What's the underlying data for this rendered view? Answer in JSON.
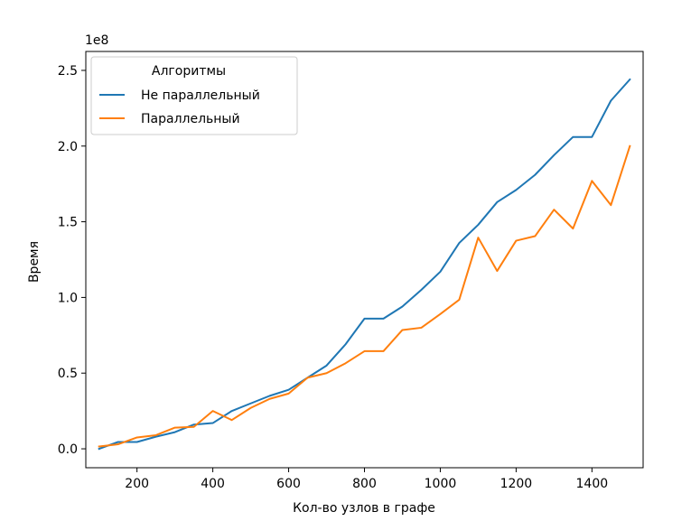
{
  "chart_data": {
    "type": "line",
    "xlabel": "Кол-во узлов в графе",
    "ylabel": "Время",
    "y_offset_label": "1e8",
    "xlim": [
      65,
      1535
    ],
    "ylim": [
      -12500000,
      262500000
    ],
    "x_ticks": [
      200,
      400,
      600,
      800,
      1000,
      1200,
      1400
    ],
    "y_ticks": [
      0,
      50000000,
      100000000,
      150000000,
      200000000,
      250000000
    ],
    "y_tick_labels": [
      "0.0",
      "0.5",
      "1.0",
      "1.5",
      "2.0",
      "2.5"
    ],
    "grid": false,
    "legend": {
      "title": "Алгоритмы",
      "placement": "top-left"
    },
    "x": [
      100,
      150,
      200,
      250,
      300,
      350,
      400,
      450,
      500,
      550,
      600,
      650,
      700,
      750,
      800,
      850,
      900,
      950,
      1000,
      1050,
      1100,
      1150,
      1200,
      1250,
      1300,
      1350,
      1400,
      1450,
      1500
    ],
    "series": [
      {
        "name": "Не параллельный",
        "color": "#1f77b4",
        "values": [
          0,
          4500000,
          4500000,
          8000000,
          11000000,
          16000000,
          17000000,
          25000000,
          30000000,
          35000000,
          39000000,
          47000000,
          55000000,
          69000000,
          86000000,
          86000000,
          94000000,
          105000000,
          117000000,
          136000000,
          148000000,
          163000000,
          171000000,
          181000000,
          194000000,
          206000000,
          206000000,
          230000000,
          244000000
        ]
      },
      {
        "name": "Параллельный",
        "color": "#ff7f0e",
        "values": [
          1500000,
          3000000,
          7500000,
          9000000,
          14000000,
          14500000,
          25000000,
          19000000,
          27000000,
          33000000,
          36500000,
          47000000,
          50000000,
          56500000,
          64500000,
          64500000,
          78500000,
          80000000,
          89000000,
          98500000,
          139500000,
          117500000,
          137500000,
          140500000,
          158000000,
          145500000,
          177000000,
          161000000,
          200000000
        ]
      }
    ]
  }
}
